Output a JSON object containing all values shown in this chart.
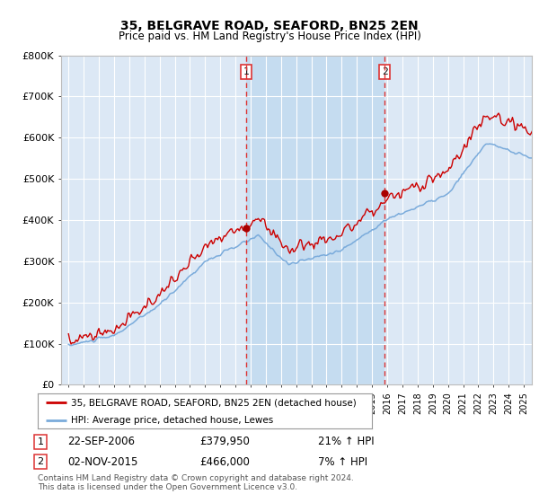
{
  "title": "35, BELGRAVE ROAD, SEAFORD, BN25 2EN",
  "subtitle": "Price paid vs. HM Land Registry's House Price Index (HPI)",
  "legend_line1": "35, BELGRAVE ROAD, SEAFORD, BN25 2EN (detached house)",
  "legend_line2": "HPI: Average price, detached house, Lewes",
  "footnote": "Contains HM Land Registry data © Crown copyright and database right 2024.\nThis data is licensed under the Open Government Licence v3.0.",
  "transaction1_date": "22-SEP-2006",
  "transaction1_price": "£379,950",
  "transaction1_hpi": "21% ↑ HPI",
  "transaction2_date": "02-NOV-2015",
  "transaction2_price": "£466,000",
  "transaction2_hpi": "7% ↑ HPI",
  "transaction1_x": 2006.72,
  "transaction2_x": 2015.83,
  "transaction1_y": 379950,
  "transaction2_y": 466000,
  "ylim_min": 0,
  "ylim_max": 800000,
  "xlim_min": 1994.5,
  "xlim_max": 2025.5,
  "hpi_line_color": "#7AABDB",
  "property_line_color": "#cc0000",
  "vline_color": "#dd3333",
  "dot_color": "#aa0000",
  "plot_bg_color": "#dce8f5",
  "shade_color": "#c5dcf0",
  "outer_bg_color": "#ffffff",
  "grid_color": "#ffffff",
  "yticks": [
    0,
    100000,
    200000,
    300000,
    400000,
    500000,
    600000,
    700000,
    800000
  ],
  "ytick_labels": [
    "£0",
    "£100K",
    "£200K",
    "£300K",
    "£400K",
    "£500K",
    "£600K",
    "£700K",
    "£800K"
  ],
  "xticks": [
    1995,
    1996,
    1997,
    1998,
    1999,
    2000,
    2001,
    2002,
    2003,
    2004,
    2005,
    2006,
    2007,
    2008,
    2009,
    2010,
    2011,
    2012,
    2013,
    2014,
    2015,
    2016,
    2017,
    2018,
    2019,
    2020,
    2021,
    2022,
    2023,
    2024,
    2025
  ]
}
